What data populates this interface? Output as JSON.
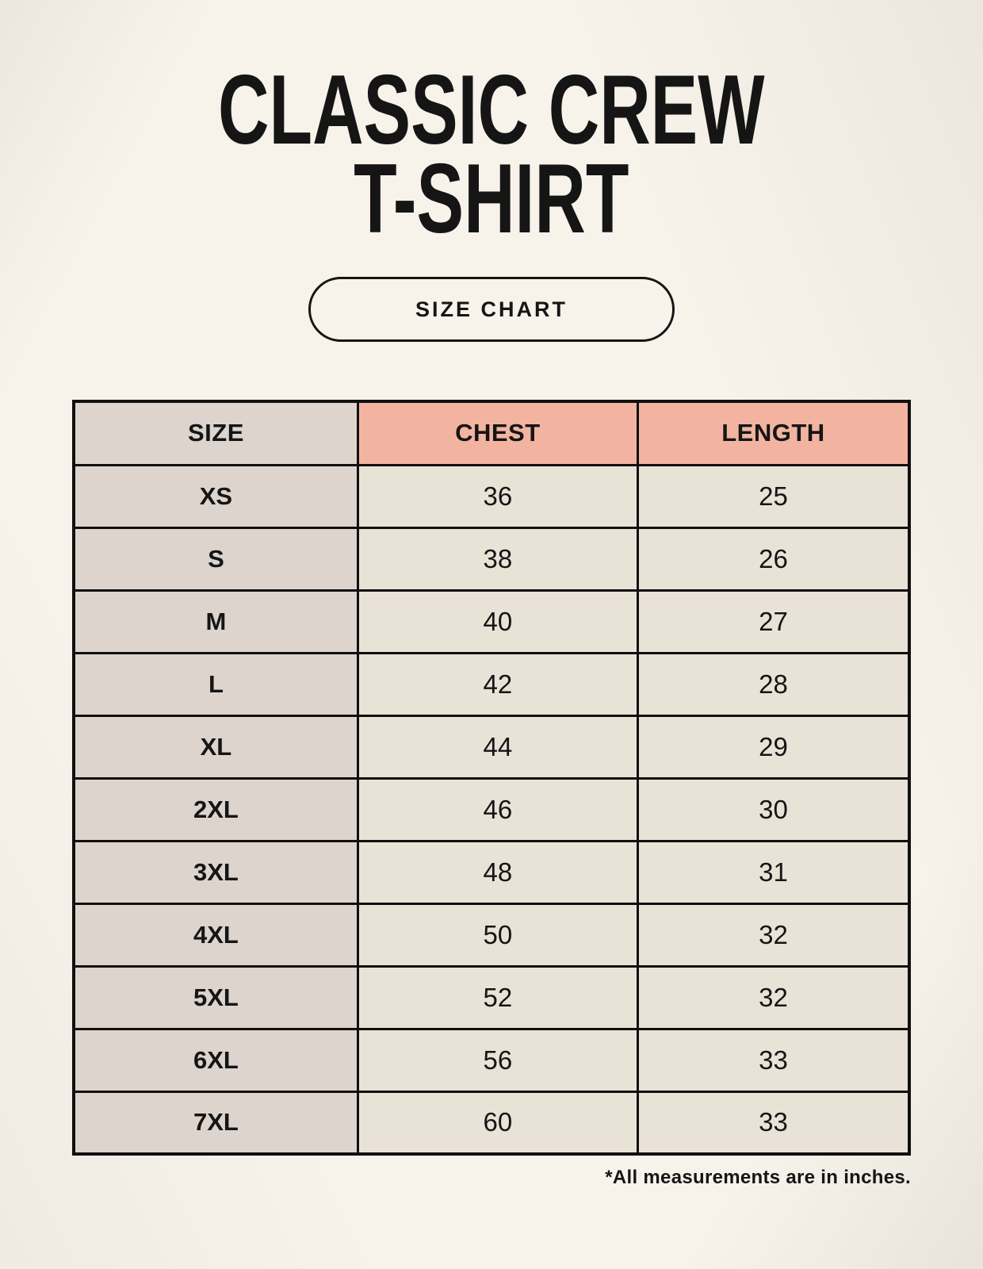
{
  "page": {
    "title": {
      "line1": "CLASSIC CREW",
      "line2": "T-SHIRT"
    },
    "size_chart_button_label": "SIZE CHART",
    "footnote": "*All measurements are in inches."
  },
  "colors": {
    "page_background": "#f7f3eb",
    "accent_header": "#f2b4a1",
    "size_column": "#dcd4cd",
    "value_cell": "#e9e2d6",
    "table_border": "#101010",
    "text": "#151515"
  },
  "chart_data": {
    "type": "table",
    "title": "Classic Crew T-Shirt Size Chart",
    "unit_note": "*All measurements are in inches.",
    "columns": [
      "SIZE",
      "CHEST",
      "LENGTH"
    ],
    "rows": [
      [
        "XS",
        "36",
        "25"
      ],
      [
        "S",
        "38",
        "26"
      ],
      [
        "M",
        "40",
        "27"
      ],
      [
        "L",
        "42",
        "28"
      ],
      [
        "XL",
        "44",
        "29"
      ],
      [
        "2XL",
        "46",
        "30"
      ],
      [
        "3XL",
        "48",
        "31"
      ],
      [
        "4XL",
        "50",
        "32"
      ],
      [
        "5XL",
        "52",
        "32"
      ],
      [
        "6XL",
        "56",
        "33"
      ],
      [
        "7XL",
        "60",
        "33"
      ]
    ]
  }
}
